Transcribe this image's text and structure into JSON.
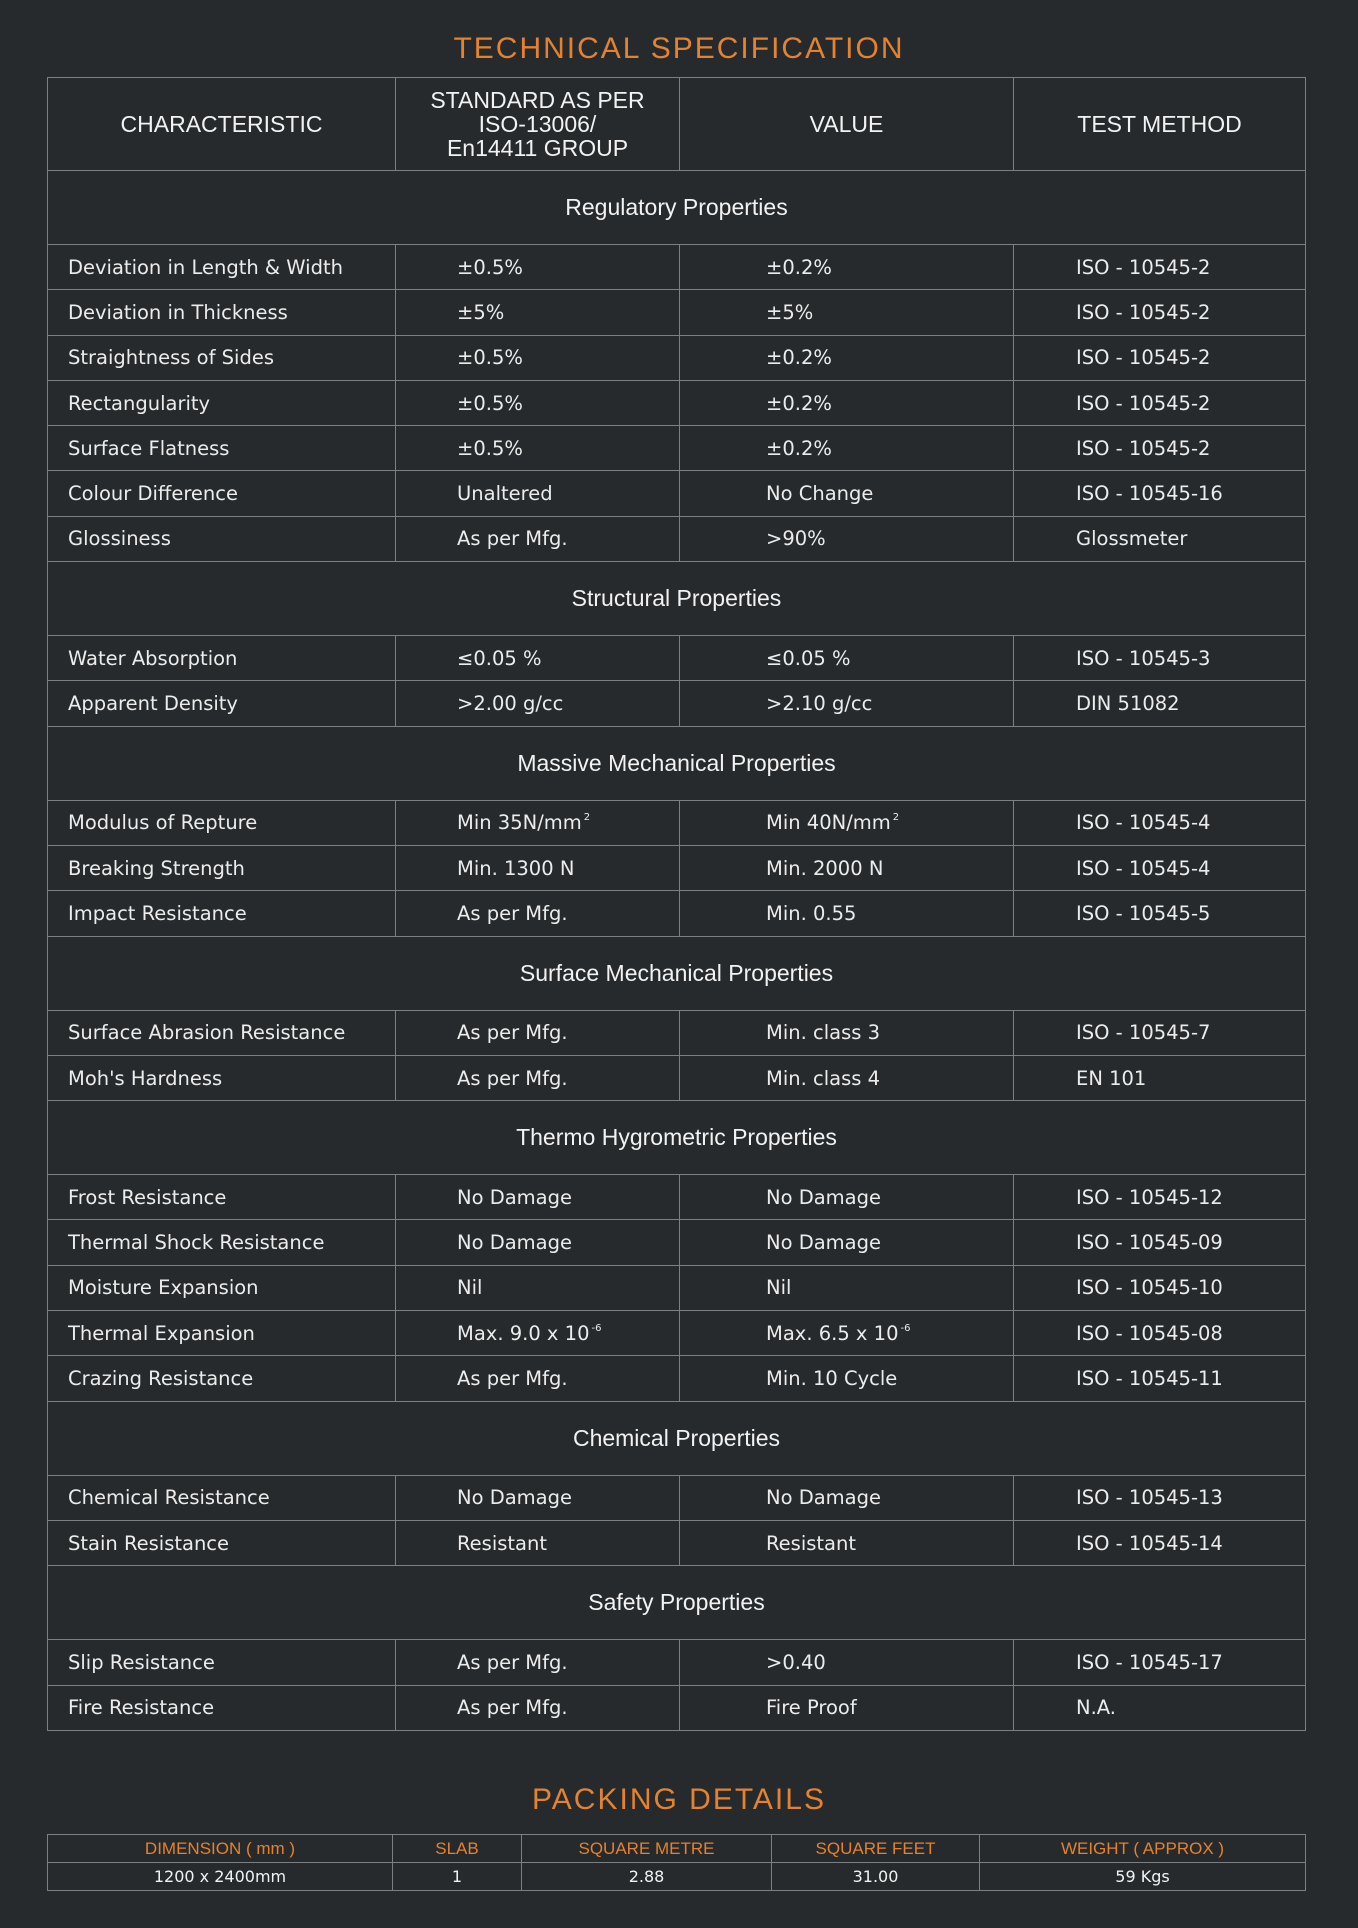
{
  "title": "TECHNICAL SPECIFICATION",
  "headers": [
    "CHARACTERISTIC",
    "STANDARD AS PER ISO-13006/ En14411 GROUP",
    "VALUE",
    "TEST METHOD"
  ],
  "header_lines": {
    "standard": [
      "STANDARD AS PER",
      "ISO-13006/",
      "En14411 GROUP"
    ]
  },
  "sections": [
    {
      "title": "Regulatory Properties",
      "rows": [
        [
          {
            "t": "Deviation in Length & Width"
          },
          {
            "t": "±0.5%"
          },
          {
            "t": "±0.2%"
          },
          {
            "t": "ISO - 10545-2"
          }
        ],
        [
          {
            "t": "Deviation in Thickness"
          },
          {
            "t": "±5%"
          },
          {
            "t": "±5%"
          },
          {
            "t": "ISO - 10545-2"
          }
        ],
        [
          {
            "t": "Straightness of Sides"
          },
          {
            "t": "±0.5%"
          },
          {
            "t": "±0.2%"
          },
          {
            "t": "ISO - 10545-2"
          }
        ],
        [
          {
            "t": "Rectangularity"
          },
          {
            "t": "±0.5%"
          },
          {
            "t": "±0.2%"
          },
          {
            "t": "ISO - 10545-2"
          }
        ],
        [
          {
            "t": "Surface Flatness"
          },
          {
            "t": "±0.5%"
          },
          {
            "t": "±0.2%"
          },
          {
            "t": "ISO - 10545-2"
          }
        ],
        [
          {
            "t": "Colour Difference"
          },
          {
            "t": "Unaltered"
          },
          {
            "t": "No Change"
          },
          {
            "t": "ISO - 10545-16"
          }
        ],
        [
          {
            "t": "Glossiness"
          },
          {
            "t": "As per Mfg."
          },
          {
            "t": ">90%"
          },
          {
            "t": "Glossmeter"
          }
        ]
      ]
    },
    {
      "title": "Structural Properties",
      "rows": [
        [
          {
            "t": "Water Absorption"
          },
          {
            "t": "≤0.05 %"
          },
          {
            "t": "≤0.05 %"
          },
          {
            "t": "ISO - 10545-3"
          }
        ],
        [
          {
            "t": "Apparent Density"
          },
          {
            "t": ">2.00 g/cc"
          },
          {
            "t": ">2.10 g/cc"
          },
          {
            "t": "DIN 51082"
          }
        ]
      ]
    },
    {
      "title": "Massive Mechanical Properties",
      "rows": [
        [
          {
            "t": "Modulus of Repture"
          },
          {
            "t": "Min 35N/mm",
            "sup": "2"
          },
          {
            "t": "Min 40N/mm",
            "sup": "2"
          },
          {
            "t": "ISO - 10545-4"
          }
        ],
        [
          {
            "t": "Breaking Strength"
          },
          {
            "t": "Min. 1300 N"
          },
          {
            "t": "Min. 2000 N"
          },
          {
            "t": "ISO - 10545-4"
          }
        ],
        [
          {
            "t": "Impact Resistance"
          },
          {
            "t": "As per Mfg."
          },
          {
            "t": "Min. 0.55"
          },
          {
            "t": "ISO - 10545-5"
          }
        ]
      ]
    },
    {
      "title": "Surface Mechanical Properties",
      "rows": [
        [
          {
            "t": "Surface Abrasion Resistance"
          },
          {
            "t": "As per Mfg."
          },
          {
            "t": "Min. class 3"
          },
          {
            "t": "ISO - 10545-7"
          }
        ],
        [
          {
            "t": "Moh's Hardness"
          },
          {
            "t": "As per Mfg."
          },
          {
            "t": "Min. class 4"
          },
          {
            "t": "EN 101"
          }
        ]
      ]
    },
    {
      "title": "Thermo Hygrometric Properties",
      "rows": [
        [
          {
            "t": "Frost Resistance"
          },
          {
            "t": "No Damage"
          },
          {
            "t": "No Damage"
          },
          {
            "t": "ISO - 10545-12"
          }
        ],
        [
          {
            "t": "Thermal Shock Resistance"
          },
          {
            "t": "No Damage"
          },
          {
            "t": "No Damage"
          },
          {
            "t": "ISO - 10545-09"
          }
        ],
        [
          {
            "t": "Moisture Expansion"
          },
          {
            "t": "Nil"
          },
          {
            "t": "Nil"
          },
          {
            "t": "ISO - 10545-10"
          }
        ],
        [
          {
            "t": "Thermal Expansion"
          },
          {
            "t": "Max. 9.0 x 10",
            "sup": "-6"
          },
          {
            "t": "Max. 6.5 x 10",
            "sup": "-6"
          },
          {
            "t": "ISO - 10545-08"
          }
        ],
        [
          {
            "t": "Crazing Resistance"
          },
          {
            "t": "As per Mfg."
          },
          {
            "t": "Min. 10 Cycle"
          },
          {
            "t": "ISO - 10545-11"
          }
        ]
      ]
    },
    {
      "title": "Chemical Properties",
      "rows": [
        [
          {
            "t": "Chemical Resistance"
          },
          {
            "t": "No Damage"
          },
          {
            "t": "No Damage"
          },
          {
            "t": "ISO - 10545-13"
          }
        ],
        [
          {
            "t": "Stain Resistance"
          },
          {
            "t": "Resistant"
          },
          {
            "t": "Resistant"
          },
          {
            "t": "ISO - 10545-14"
          }
        ]
      ]
    },
    {
      "title": "Safety Properties",
      "rows": [
        [
          {
            "t": "Slip Resistance"
          },
          {
            "t": "As per Mfg."
          },
          {
            "t": ">0.40"
          },
          {
            "t": "ISO - 10545-17"
          }
        ],
        [
          {
            "t": "Fire Resistance"
          },
          {
            "t": "As per Mfg."
          },
          {
            "t": "Fire Proof"
          },
          {
            "t": "N.A."
          }
        ]
      ]
    }
  ],
  "packing": {
    "title": "PACKING DETAILS",
    "headers": [
      "DIMENSION ( mm )",
      "SLAB",
      "SQUARE METRE",
      "SQUARE FEET",
      "WEIGHT ( APPROX )"
    ],
    "row": [
      "1200 x 2400mm",
      "1",
      "2.88",
      "31.00",
      "59 Kgs"
    ]
  },
  "colors": {
    "accent": "#e3822f",
    "background": "#262a2d",
    "border": "#7d8083"
  }
}
